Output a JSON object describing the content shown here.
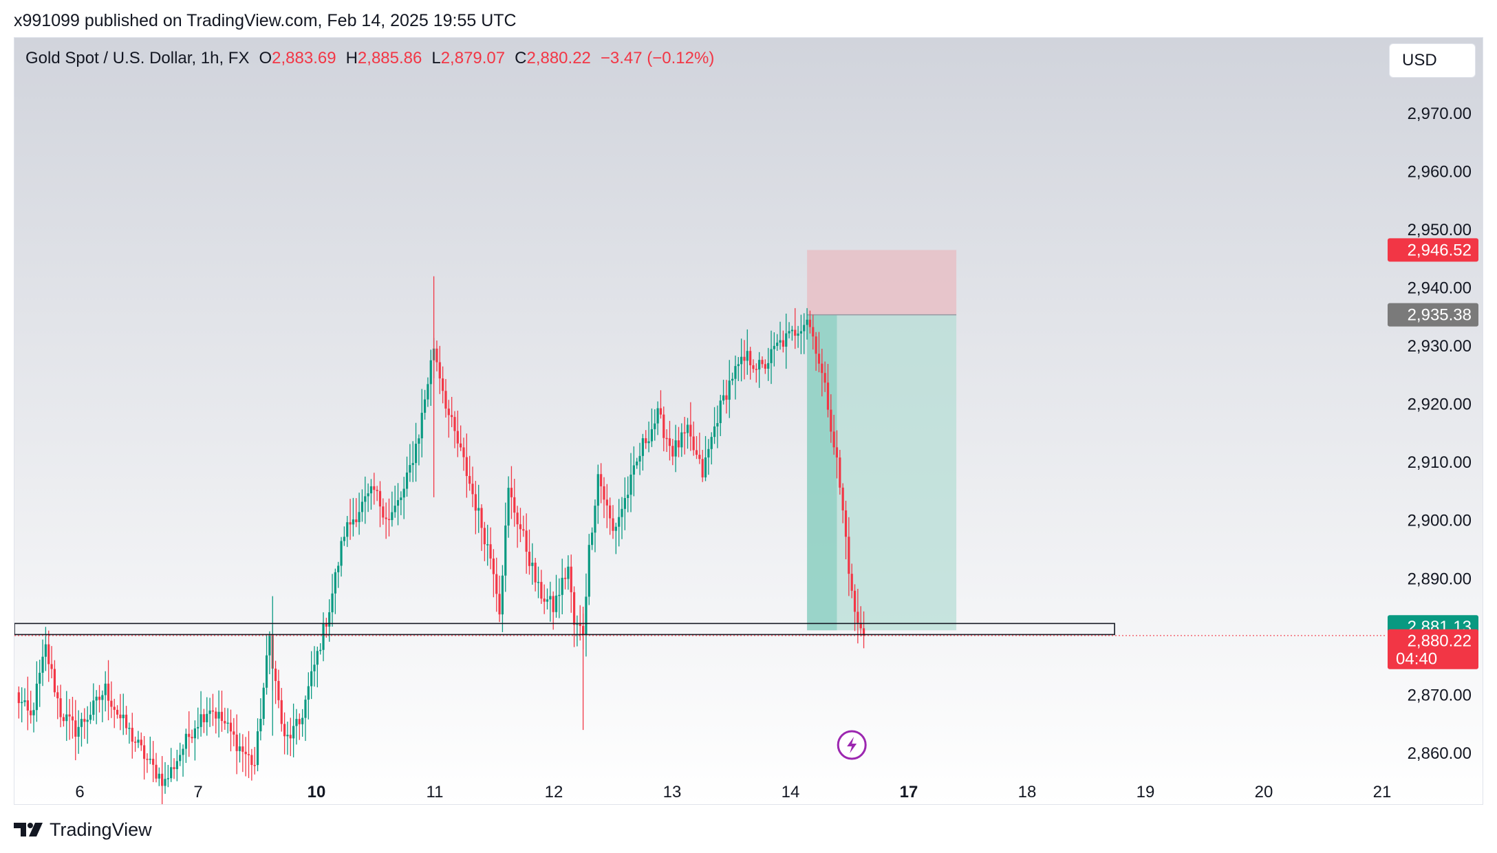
{
  "header": {
    "published": "x991099 published on TradingView.com, Feb 14, 2025 19:55 UTC"
  },
  "legend": {
    "symbol": "Gold Spot / U.S. Dollar, 1h, FX",
    "open_label": "O",
    "open": "2,883.69",
    "high_label": "H",
    "high": "2,885.86",
    "low_label": "L",
    "low": "2,879.07",
    "close_label": "C",
    "close": "2,880.22",
    "change": "−3.47 (−0.12%)"
  },
  "currency": "USD",
  "footer": {
    "brand": "TradingView"
  },
  "colors": {
    "up": "#089981",
    "down": "#f23645",
    "stop_zone": "#e7c0c6",
    "target_zone": "#b7ddd6",
    "target_zone_active": "#8fd0c3",
    "entry_label": "#7a7a7a",
    "price_label": "#f23645",
    "sma_label": "#089981"
  },
  "chart_data": {
    "type": "candlestick",
    "timeframe": "1h",
    "y_ticks": [
      "2,970.00",
      "2,960.00",
      "2,950.00",
      "2,940.00",
      "2,930.00",
      "2,920.00",
      "2,910.00",
      "2,900.00",
      "2,890.00",
      "2,870.00",
      "2,860.00"
    ],
    "ylim": [
      2851,
      2983
    ],
    "x_ticks": [
      {
        "label": "6",
        "bold": false
      },
      {
        "label": "7",
        "bold": false
      },
      {
        "label": "10",
        "bold": true
      },
      {
        "label": "11",
        "bold": false
      },
      {
        "label": "12",
        "bold": false
      },
      {
        "label": "13",
        "bold": false
      },
      {
        "label": "14",
        "bold": false
      },
      {
        "label": "17",
        "bold": true
      },
      {
        "label": "18",
        "bold": false
      },
      {
        "label": "19",
        "bold": false
      },
      {
        "label": "20",
        "bold": false
      },
      {
        "label": "21",
        "bold": false
      }
    ],
    "price_path": [
      [
        0,
        2870
      ],
      [
        5,
        2866
      ],
      [
        10,
        2878
      ],
      [
        15,
        2867
      ],
      [
        20,
        2864
      ],
      [
        25,
        2867
      ],
      [
        30,
        2871
      ],
      [
        35,
        2866
      ],
      [
        40,
        2862
      ],
      [
        45,
        2858
      ],
      [
        50,
        2855
      ],
      [
        55,
        2860
      ],
      [
        60,
        2865
      ],
      [
        65,
        2868
      ],
      [
        70,
        2865
      ],
      [
        75,
        2861
      ],
      [
        80,
        2858
      ],
      [
        85,
        2880
      ],
      [
        87,
        2872
      ],
      [
        90,
        2862
      ],
      [
        95,
        2865
      ],
      [
        100,
        2875
      ],
      [
        105,
        2885
      ],
      [
        110,
        2898
      ],
      [
        115,
        2902
      ],
      [
        120,
        2905
      ],
      [
        125,
        2900
      ],
      [
        130,
        2905
      ],
      [
        135,
        2915
      ],
      [
        140,
        2930
      ],
      [
        145,
        2918
      ],
      [
        150,
        2910
      ],
      [
        155,
        2901
      ],
      [
        160,
        2892
      ],
      [
        162,
        2885
      ],
      [
        165,
        2905
      ],
      [
        170,
        2897
      ],
      [
        175,
        2888
      ],
      [
        180,
        2885
      ],
      [
        185,
        2892
      ],
      [
        187,
        2882
      ],
      [
        190,
        2881
      ],
      [
        192,
        2895
      ],
      [
        195,
        2908
      ],
      [
        200,
        2898
      ],
      [
        205,
        2905
      ],
      [
        210,
        2913
      ],
      [
        215,
        2918
      ],
      [
        220,
        2912
      ],
      [
        225,
        2915
      ],
      [
        230,
        2908
      ],
      [
        235,
        2918
      ],
      [
        240,
        2925
      ],
      [
        245,
        2928
      ],
      [
        250,
        2926
      ],
      [
        255,
        2930
      ],
      [
        260,
        2932
      ],
      [
        265,
        2935
      ],
      [
        268,
        2930
      ],
      [
        272,
        2920
      ],
      [
        275,
        2910
      ],
      [
        278,
        2897
      ],
      [
        280,
        2887
      ],
      [
        282,
        2882
      ],
      [
        284,
        2880.22
      ]
    ],
    "last_price": "2,880.22",
    "last_price_countdown": "04:40",
    "sma_price": "2,881.13",
    "support_zone": [
      2880.4,
      2882.3
    ],
    "position": {
      "type": "short",
      "entry": 2935.38,
      "entry_label": "2,935.38",
      "stop": 2946.52,
      "stop_label": "2,946.52",
      "target": 2881.13
    }
  }
}
